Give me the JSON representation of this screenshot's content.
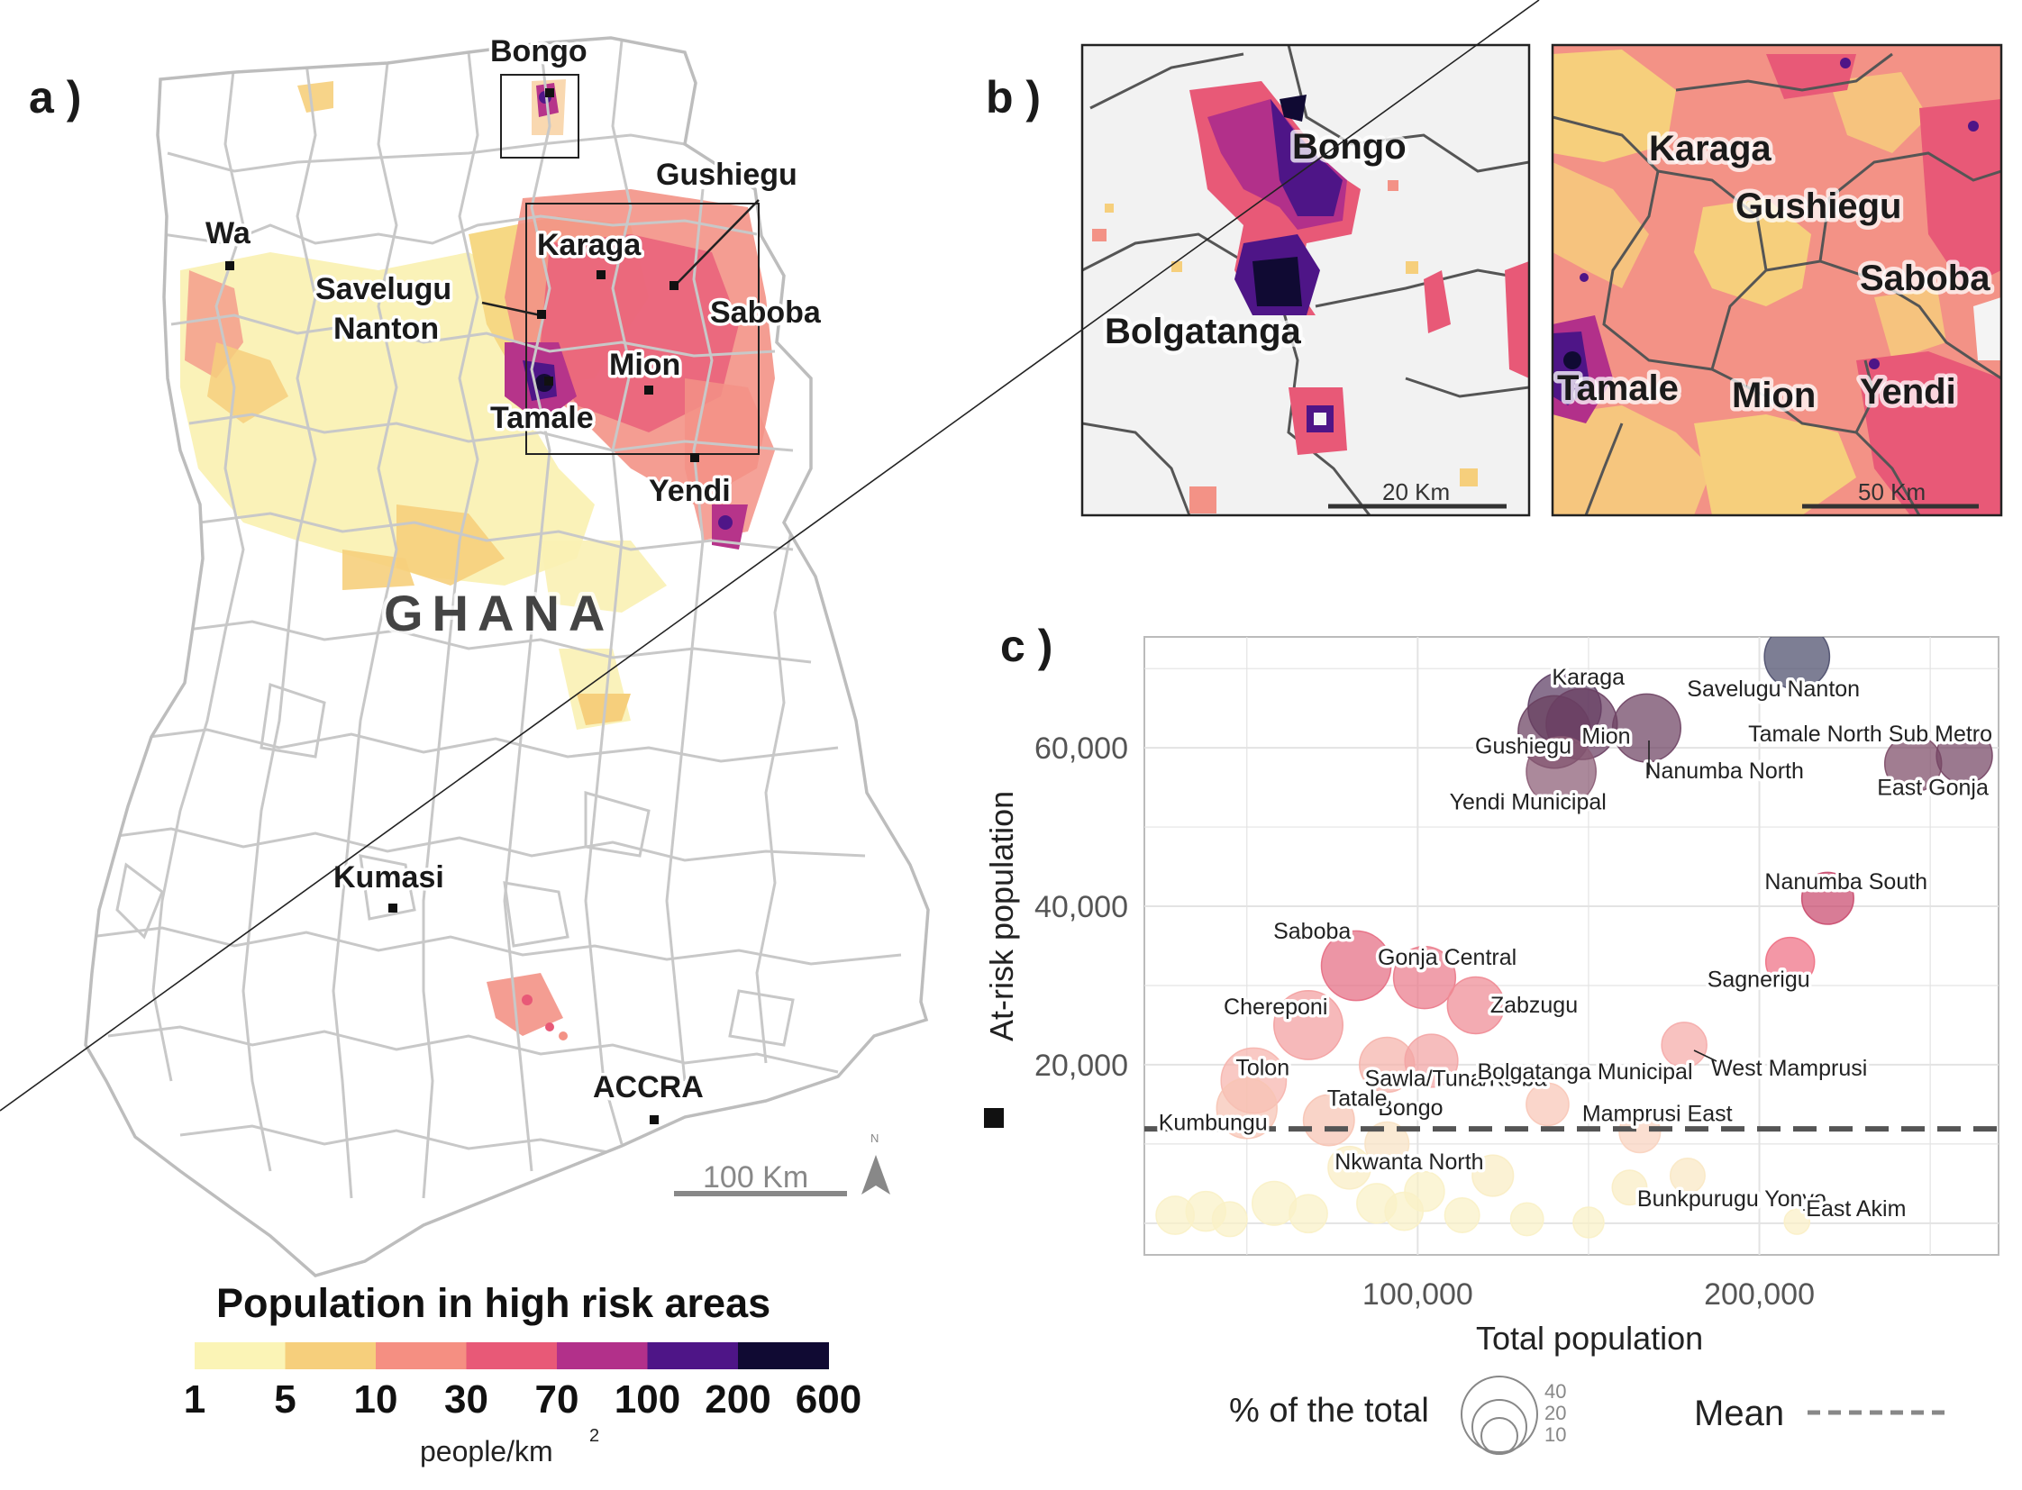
{
  "panels": {
    "a": "a )",
    "b": "b )",
    "c": "c )"
  },
  "map_a": {
    "country": "GHANA",
    "places": [
      "Bongo",
      "Gushiegu",
      "Wa",
      "Karaga",
      "Savelugu",
      "Nanton",
      "Saboba",
      "Mion",
      "Tamale",
      "Yendi",
      "Kumasi",
      "ACCRA"
    ],
    "scale_label": "100 Km",
    "north_label": "N"
  },
  "inset_1": {
    "labels": [
      "Bongo",
      "Bolgatanga"
    ],
    "scale_label": "20 Km"
  },
  "inset_2": {
    "labels": [
      "Karaga",
      "Gushiegu",
      "Saboba",
      "Tamale",
      "Mion",
      "Yendi"
    ],
    "scale_label": "50 Km"
  },
  "legend": {
    "title": "Population in high risk areas",
    "breaks": [
      "1",
      "5",
      "10",
      "30",
      "70",
      "100",
      "200",
      "600"
    ],
    "colors": [
      "#fbf4b6",
      "#f6cf7c",
      "#f58f82",
      "#e85977",
      "#b2308a",
      "#4e1587",
      "#100a33"
    ],
    "unit": "people/km",
    "unit_sup": "2"
  },
  "chart_data": {
    "type": "scatter",
    "xlabel": "Total population",
    "ylabel": "At-risk population",
    "xlim": [
      20000,
      270000
    ],
    "ylim": [
      -4000,
      74000
    ],
    "x_ticks": [
      "100,000",
      "200,000"
    ],
    "x_tick_values": [
      100000,
      200000
    ],
    "y_ticks": [
      "20,000",
      "40,000",
      "60,000"
    ],
    "y_tick_values": [
      20000,
      40000,
      60000
    ],
    "mean": 11900,
    "mean_label": "Mean",
    "size_legend": {
      "title": "% of the total",
      "values": [
        "40",
        "20",
        "10"
      ]
    },
    "points": [
      {
        "name": "Savelugu Nanton",
        "x": 211000,
        "y": 71500,
        "pct": 34,
        "color": "#4b4c6b"
      },
      {
        "name": "Karaga",
        "x": 143000,
        "y": 65000,
        "pct": 45,
        "color": "#5c3c63"
      },
      {
        "name": "Gushiegu",
        "x": 140000,
        "y": 62000,
        "pct": 44,
        "color": "#69405f"
      },
      {
        "name": "Mion",
        "x": 148000,
        "y": 63000,
        "pct": 42,
        "color": "#6a3f62"
      },
      {
        "name": "Nanumba North",
        "x": 167000,
        "y": 62500,
        "pct": 38,
        "color": "#6e4263"
      },
      {
        "name": "Yendi Municipal",
        "x": 142000,
        "y": 57000,
        "pct": 40,
        "color": "#8a5b74"
      },
      {
        "name": "Tamale North Sub Metro",
        "x": 260000,
        "y": 59000,
        "pct": 23,
        "color": "#754564"
      },
      {
        "name": "East Gonja",
        "x": 245000,
        "y": 58000,
        "pct": 24,
        "color": "#7d4b67"
      },
      {
        "name": "Nanumba South",
        "x": 220000,
        "y": 41000,
        "pct": 19,
        "color": "#c94a6d"
      },
      {
        "name": "Saboba",
        "x": 82000,
        "y": 32500,
        "pct": 40,
        "color": "#e56c82"
      },
      {
        "name": "Gonja Central",
        "x": 102000,
        "y": 31000,
        "pct": 30,
        "color": "#ea7a8a"
      },
      {
        "name": "Sagnerigu",
        "x": 209000,
        "y": 33000,
        "pct": 16,
        "color": "#ee6f83"
      },
      {
        "name": "Zabzugu",
        "x": 117000,
        "y": 27500,
        "pct": 24,
        "color": "#ef8a94"
      },
      {
        "name": "Chereponi",
        "x": 68000,
        "y": 25000,
        "pct": 39,
        "color": "#f39e9f"
      },
      {
        "name": "Sawla/Tuna/Kalba",
        "x": 104000,
        "y": 20500,
        "pct": 20,
        "color": "#f3a4a4"
      },
      {
        "name": "Tolon",
        "x": 52000,
        "y": 18000,
        "pct": 34,
        "color": "#f6b4ad"
      },
      {
        "name": "Bongo",
        "x": 91000,
        "y": 20000,
        "pct": 22,
        "color": "#f5b3ab"
      },
      {
        "name": "West Mamprusi",
        "x": 178000,
        "y": 22500,
        "pct": 13,
        "color": "#f5aaa8"
      },
      {
        "name": "Bolgatanga Municipal",
        "x": 138000,
        "y": 15000,
        "pct": 11,
        "color": "#f8c6b7"
      },
      {
        "name": "Tatale",
        "x": 74000,
        "y": 13000,
        "pct": 18,
        "color": "#f7c3b3"
      },
      {
        "name": "Kumbungu",
        "x": 50000,
        "y": 14500,
        "pct": 28,
        "color": "#f7c4b4"
      },
      {
        "name": "Mamprusi East",
        "x": 165000,
        "y": 11500,
        "pct": 10,
        "color": "#f9d3bf"
      },
      {
        "name": "Nkwanta North",
        "x": 91000,
        "y": 10000,
        "pct": 12,
        "color": "#f8e2c3"
      },
      {
        "name": "Bunkpurugu Yonyo",
        "x": 179000,
        "y": 6000,
        "pct": 6,
        "color": "#f9e8c4"
      },
      {
        "name": "East Akim",
        "x": 211000,
        "y": 200,
        "pct": 2,
        "color": "#fbf0c6"
      },
      {
        "name": "",
        "x": 58000,
        "y": 2500,
        "pct": 12,
        "color": "#f9f1c6"
      },
      {
        "name": "",
        "x": 38000,
        "y": 1500,
        "pct": 9,
        "color": "#f9f1c6"
      },
      {
        "name": "",
        "x": 29000,
        "y": 1000,
        "pct": 8,
        "color": "#f9f1c6"
      },
      {
        "name": "",
        "x": 68000,
        "y": 1200,
        "pct": 8,
        "color": "#f9f1c6"
      },
      {
        "name": "",
        "x": 88000,
        "y": 2500,
        "pct": 9,
        "color": "#f9f1c6"
      },
      {
        "name": "",
        "x": 96000,
        "y": 1500,
        "pct": 8,
        "color": "#f9f1c6"
      },
      {
        "name": "",
        "x": 102000,
        "y": 4000,
        "pct": 9,
        "color": "#f9f1c6"
      },
      {
        "name": "",
        "x": 122000,
        "y": 6000,
        "pct": 10,
        "color": "#f9edc4"
      },
      {
        "name": "",
        "x": 113000,
        "y": 1000,
        "pct": 6,
        "color": "#f9f1c6"
      },
      {
        "name": "",
        "x": 132000,
        "y": 500,
        "pct": 5,
        "color": "#f9f1c6"
      },
      {
        "name": "",
        "x": 150000,
        "y": 100,
        "pct": 4,
        "color": "#f9f1c6"
      },
      {
        "name": "",
        "x": 80000,
        "y": 7000,
        "pct": 11,
        "color": "#f9edc4"
      },
      {
        "name": "",
        "x": 162000,
        "y": 4500,
        "pct": 6,
        "color": "#f9edc4"
      },
      {
        "name": "",
        "x": 45000,
        "y": 500,
        "pct": 6,
        "color": "#f9f1c6"
      }
    ]
  }
}
